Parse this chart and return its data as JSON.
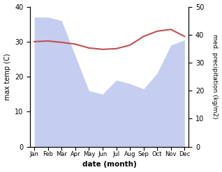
{
  "months": [
    "Jan",
    "Feb",
    "Mar",
    "Apr",
    "May",
    "Jun",
    "Jul",
    "Aug",
    "Sep",
    "Oct",
    "Nov",
    "Dec"
  ],
  "temp": [
    30.0,
    30.2,
    29.8,
    29.3,
    28.2,
    27.8,
    28.0,
    29.0,
    31.5,
    33.0,
    33.5,
    31.5
  ],
  "precip": [
    37.0,
    37.0,
    36.0,
    26.0,
    16.0,
    15.0,
    19.0,
    18.0,
    16.5,
    21.0,
    29.0,
    30.5
  ],
  "temp_color": "#c0504d",
  "precip_fill_color": "#c5cef0",
  "precip_edge_color": "#aab4e0",
  "ylim_left": [
    0,
    40
  ],
  "ylim_right": [
    0,
    50
  ],
  "left_ticks": [
    0,
    10,
    20,
    30,
    40
  ],
  "right_ticks": [
    0,
    10,
    20,
    30,
    40,
    50
  ],
  "ylabel_left": "max temp (C)",
  "ylabel_right": "med. precipitation (kg/m2)",
  "xlabel": "date (month)",
  "bg_color": "#ffffff",
  "fig_width": 3.18,
  "fig_height": 2.47,
  "dpi": 100
}
